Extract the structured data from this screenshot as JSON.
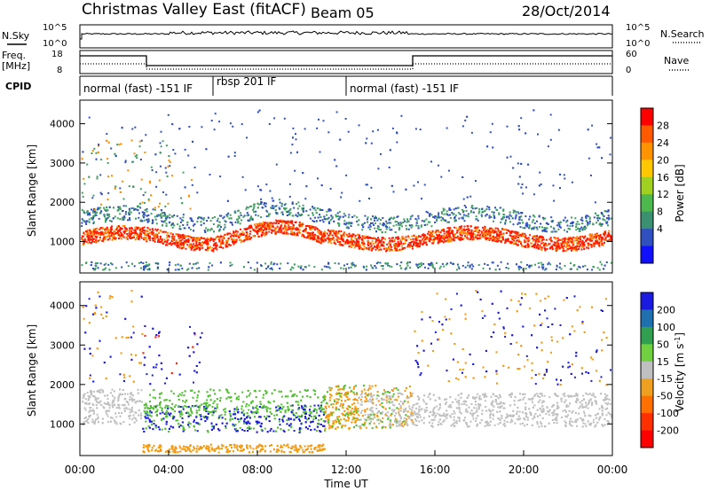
{
  "header": {
    "title": "Christmas Valley East (fitACF)",
    "beam": "Beam 05",
    "date": "28/Oct/2014"
  },
  "aux_panels": {
    "nsky_label": "N.Sky",
    "nsearch_label": "N.Search",
    "nsky_ticks": [
      "10^5",
      "10^0"
    ],
    "nsearch_ticks": [
      "10^5",
      "10^0"
    ],
    "freq_label_1": "Freq.",
    "freq_label_2": "[MHz]",
    "freq_ticks": [
      "18",
      "8"
    ],
    "nave_label": "Nave",
    "nave_ticks": [
      "60",
      "0"
    ],
    "cpid_label": "CPID",
    "cpid_segments": [
      {
        "label": "normal (fast) -151 IF",
        "start_hour": 0,
        "end_hour": 6
      },
      {
        "label": "rbsp 201 IF",
        "start_hour": 6,
        "end_hour": 12
      },
      {
        "label": "normal (fast) -151 IF",
        "start_hour": 12,
        "end_hour": 24
      }
    ]
  },
  "chart_data": [
    {
      "type": "heatmap",
      "name": "power-panel",
      "ylabel": "Slant Range [km]",
      "xlabel": "Time UT",
      "x_ticks": [
        "00:00",
        "04:00",
        "08:00",
        "12:00",
        "16:00",
        "20:00",
        "00:00"
      ],
      "y_ticks": [
        1000,
        2000,
        3000,
        4000
      ],
      "xlim_hours": [
        0,
        24
      ],
      "ylim_km": [
        200,
        4600
      ],
      "colorbar": {
        "label": "Power [dB]",
        "ticks": [
          "28",
          "24",
          "20",
          "16",
          "12",
          "8",
          "4"
        ],
        "colors": [
          "#ff0000",
          "#ff5a00",
          "#ff9400",
          "#ffc800",
          "#a0d020",
          "#4db84d",
          "#3a9070",
          "#3050c0",
          "#1010ff"
        ]
      },
      "data_colors": {
        "strong": "#ff1a00",
        "medium": "#ff8c00",
        "weak": "#40a060",
        "faint": "#3050c0"
      }
    },
    {
      "type": "heatmap",
      "name": "velocity-panel",
      "ylabel": "Slant Range [km]",
      "xlabel": "Time UT",
      "x_ticks": [
        "00:00",
        "04:00",
        "08:00",
        "12:00",
        "16:00",
        "20:00",
        "00:00"
      ],
      "y_ticks": [
        1000,
        2000,
        3000,
        4000
      ],
      "xlim_hours": [
        0,
        24
      ],
      "ylim_km": [
        200,
        4600
      ],
      "colorbar": {
        "label": "Velocity [m s",
        "label_sup": "-1",
        "label_close": "]",
        "ticks": [
          "200",
          "100",
          "50",
          "15",
          "-15",
          "-50",
          "-100",
          "-200"
        ],
        "colors": [
          "#1a1ae0",
          "#2070b0",
          "#30a050",
          "#70d040",
          "#c0c0c0",
          "#f0a020",
          "#ff7000",
          "#ff3000",
          "#ff0000"
        ]
      },
      "data_colors": {
        "toward": "#1a1ae0",
        "green": "#50c030",
        "ground": "#c0c0c0",
        "away": "#f59a10",
        "strong_away": "#ff2000"
      }
    }
  ]
}
